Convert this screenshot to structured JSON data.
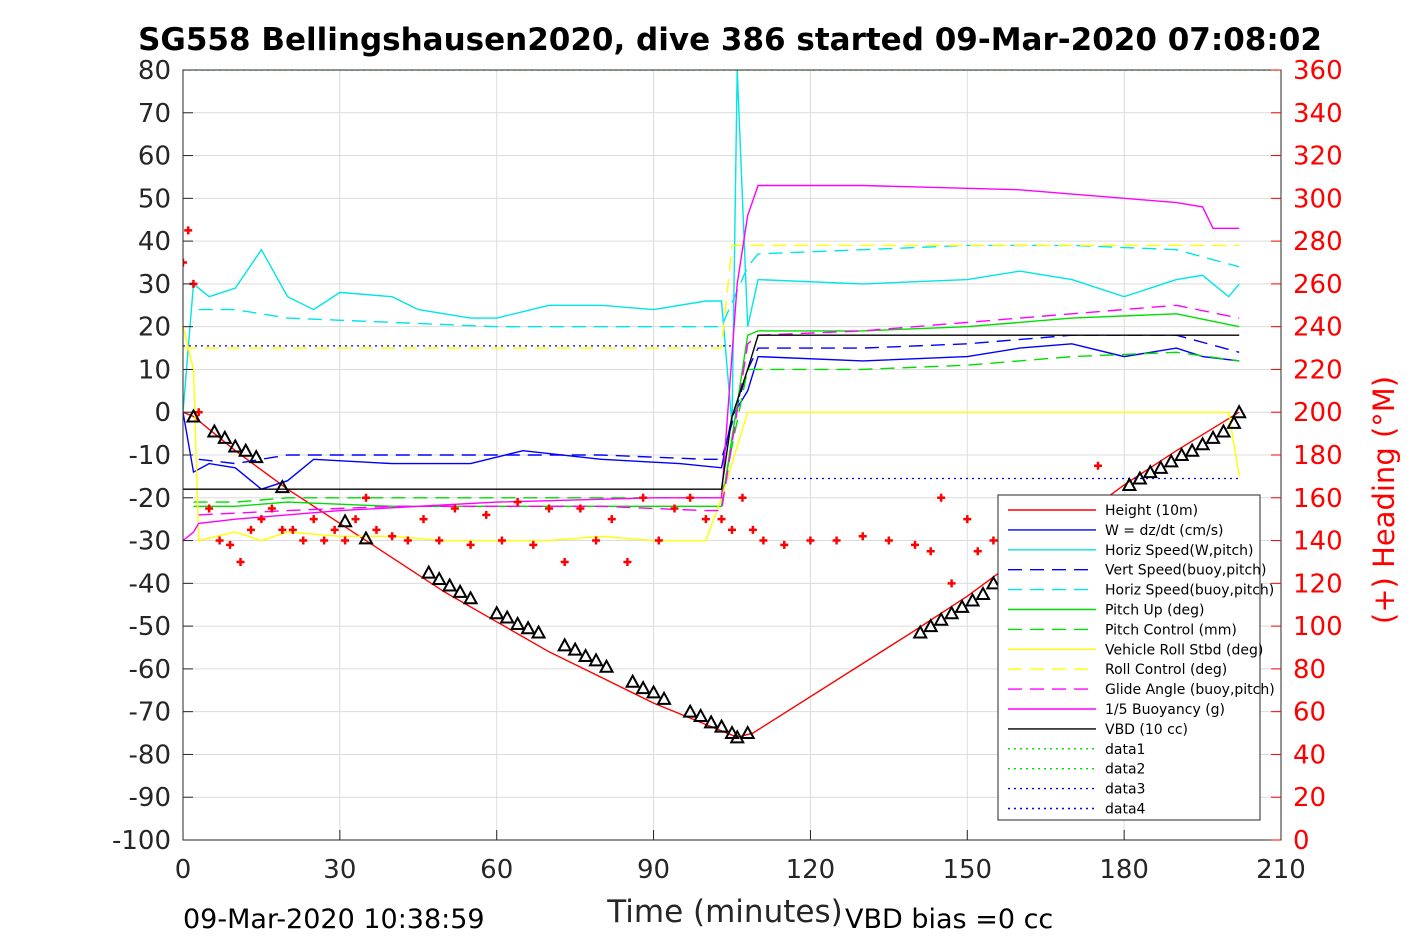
{
  "chart_data": {
    "type": "line",
    "title": "SG558 Bellingshausen2020, dive 386 started 09-Mar-2020 07:08:02",
    "xlabel": "Time (minutes)",
    "ylabel_right": "(+) Heading (°M)",
    "xlim": [
      0,
      210
    ],
    "ylim": [
      -100,
      80
    ],
    "ylim_right": [
      0,
      360
    ],
    "x_ticks": [
      0,
      30,
      60,
      90,
      120,
      150,
      180,
      210
    ],
    "y_ticks": [
      -100,
      -90,
      -80,
      -70,
      -60,
      -50,
      -40,
      -30,
      -20,
      -10,
      0,
      10,
      20,
      30,
      40,
      50,
      60,
      70,
      80
    ],
    "y_right_ticks": [
      0,
      20,
      40,
      60,
      80,
      100,
      120,
      140,
      160,
      180,
      200,
      220,
      240,
      260,
      280,
      300,
      320,
      340,
      360
    ],
    "grid": true,
    "legend_position": "bottom-right",
    "footer_left": "09-Mar-2020 10:38:59",
    "footer_right": "VBD bias =0 cc",
    "colors": {
      "red": "#ff0000",
      "blue": "#0000ff",
      "cyan": "#00e5e5",
      "green": "#00dd00",
      "yellow": "#ffff00",
      "magenta": "#ff00ff",
      "black": "#000000"
    },
    "series": [
      {
        "name": "Height (10m)",
        "color": "#ff0000",
        "dash": "solid",
        "x": [
          0,
          2,
          10,
          20,
          30,
          40,
          50,
          60,
          70,
          80,
          90,
          100,
          106,
          109,
          140,
          150,
          160,
          170,
          180,
          190,
          202
        ],
        "y": [
          0,
          -1,
          -9,
          -18,
          -26,
          -34,
          -42,
          -49,
          -56,
          -62,
          -68,
          -73,
          -76,
          -75,
          -51,
          -43,
          -34,
          -26,
          -17,
          -9,
          0
        ]
      },
      {
        "name": "W = dz/dt (cm/s)",
        "color": "#0000ff",
        "dash": "solid",
        "x": [
          0,
          2,
          5,
          10,
          15,
          20,
          25,
          40,
          55,
          65,
          80,
          95,
          103,
          105,
          108,
          110,
          130,
          150,
          160,
          170,
          180,
          190,
          195,
          202
        ],
        "y": [
          0,
          -14,
          -12,
          -13,
          -18,
          -16,
          -11,
          -12,
          -12,
          -9,
          -11,
          -12,
          -13,
          -1,
          5,
          13,
          12,
          13,
          15,
          16,
          13,
          15,
          13,
          12
        ]
      },
      {
        "name": "Horiz Speed(W,pitch)",
        "color": "#00e5e5",
        "dash": "solid",
        "x": [
          0,
          2,
          5,
          10,
          15,
          20,
          25,
          30,
          40,
          45,
          55,
          60,
          70,
          80,
          90,
          100,
          103,
          105,
          106,
          108,
          110,
          130,
          150,
          160,
          170,
          180,
          190,
          195,
          200,
          202
        ],
        "y": [
          0,
          30,
          27,
          29,
          38,
          27,
          24,
          28,
          27,
          24,
          22,
          22,
          25,
          25,
          24,
          26,
          26,
          -3,
          80,
          20,
          31,
          30,
          31,
          33,
          31,
          27,
          31,
          32,
          27,
          30
        ]
      },
      {
        "name": "Vert Speed(buoy,pitch)",
        "color": "#0000ff",
        "dash": "dashed",
        "x": [
          3,
          10,
          20,
          40,
          60,
          80,
          100,
          103,
          108,
          110,
          130,
          150,
          170,
          190,
          202
        ],
        "y": [
          -11,
          -12,
          -10,
          -10,
          -10,
          -10,
          -11,
          -11,
          10,
          15,
          15,
          16,
          18,
          18,
          14
        ]
      },
      {
        "name": "Horiz Speed(buoy,pitch)",
        "color": "#00e5e5",
        "dash": "dashed",
        "x": [
          3,
          10,
          20,
          40,
          60,
          80,
          100,
          103,
          108,
          110,
          130,
          150,
          170,
          190,
          202
        ],
        "y": [
          24,
          24,
          22,
          21,
          20,
          20,
          20,
          20,
          34,
          37,
          38,
          39,
          39,
          38,
          34
        ]
      },
      {
        "name": "Pitch Up (deg)",
        "color": "#00dd00",
        "dash": "solid",
        "x": [
          2,
          10,
          20,
          40,
          60,
          80,
          100,
          103,
          108,
          110,
          130,
          150,
          170,
          190,
          202
        ],
        "y": [
          -22,
          -22,
          -21,
          -22,
          -22,
          -22,
          -22,
          -22,
          18,
          19,
          19,
          20,
          22,
          23,
          20
        ]
      },
      {
        "name": "Pitch Control (mm)",
        "color": "#00dd00",
        "dash": "dashed",
        "x": [
          2,
          10,
          20,
          40,
          60,
          80,
          100,
          103,
          108,
          110,
          130,
          150,
          170,
          190,
          202
        ],
        "y": [
          -21,
          -21,
          -20,
          -20,
          -20,
          -20,
          -20,
          -20,
          10,
          10,
          10,
          11,
          13,
          14,
          12
        ]
      },
      {
        "name": "Vehicle Roll Stbd (deg)",
        "color": "#ffff00",
        "dash": "solid",
        "x": [
          0,
          2,
          3,
          10,
          15,
          20,
          30,
          40,
          50,
          60,
          70,
          80,
          90,
          100,
          103,
          108,
          120,
          140,
          150,
          160,
          170,
          180,
          190,
          200,
          202
        ],
        "y": [
          20,
          10,
          -30,
          -28,
          -30,
          -28,
          -29,
          -29,
          -30,
          -30,
          -30,
          -29,
          -30,
          -30,
          -20,
          0,
          0,
          0,
          0,
          0,
          0,
          0,
          0,
          0,
          -15
        ]
      },
      {
        "name": "Roll Control (deg)",
        "color": "#ffff00",
        "dash": "dashed",
        "x": [
          0,
          103,
          105,
          202
        ],
        "y": [
          15,
          15,
          39,
          39
        ]
      },
      {
        "name": "Glide Angle (buoy,pitch)",
        "color": "#ff00ff",
        "dash": "dashed",
        "x": [
          3,
          20,
          40,
          60,
          80,
          100,
          103,
          108,
          110,
          130,
          150,
          170,
          190,
          202
        ],
        "y": [
          -24,
          -23,
          -22,
          -22,
          -22,
          -23,
          -23,
          16,
          18,
          19,
          21,
          23,
          25,
          22
        ]
      },
      {
        "name": "1/5 Buoyancy (g)",
        "color": "#ff00ff",
        "dash": "solid",
        "x": [
          0,
          2,
          3,
          10,
          30,
          60,
          90,
          103,
          106,
          108,
          110,
          130,
          160,
          180,
          190,
          195,
          197,
          202
        ],
        "y": [
          -30,
          -28,
          -26,
          -25,
          -23,
          -21,
          -20,
          -20,
          30,
          46,
          53,
          53,
          52,
          50,
          49,
          48,
          43,
          43
        ]
      },
      {
        "name": "VBD (10 cc)",
        "color": "#000000",
        "dash": "solid",
        "x": [
          0,
          2,
          103,
          105,
          108,
          110,
          202
        ],
        "y": [
          -18,
          -18,
          -18,
          -1,
          10,
          18,
          18
        ]
      },
      {
        "name": "data1",
        "color": "#00dd00",
        "dash": "dotted",
        "x": [
          0,
          210
        ],
        "y": [
          80,
          80
        ]
      },
      {
        "name": "data2",
        "color": "#00dd00",
        "dash": "dotted",
        "x": [
          0,
          210
        ],
        "y": [
          80,
          80
        ]
      },
      {
        "name": "data3",
        "color": "#0000ff",
        "dash": "dotted",
        "x": [
          0,
          105
        ],
        "y": [
          15.5,
          15.5
        ]
      },
      {
        "name": "data4",
        "color": "#0000ff",
        "dash": "dotted",
        "x": [
          105,
          202
        ],
        "y": [
          -15.5,
          -15.5
        ]
      }
    ],
    "heading_series": {
      "color": "#ff0000",
      "marker": "+",
      "axis": "right",
      "x": [
        0,
        1,
        2,
        3,
        5,
        7,
        9,
        11,
        13,
        15,
        17,
        19,
        21,
        23,
        25,
        27,
        29,
        31,
        33,
        35,
        37,
        40,
        43,
        46,
        49,
        52,
        55,
        58,
        61,
        64,
        67,
        70,
        73,
        76,
        79,
        82,
        85,
        88,
        91,
        94,
        97,
        100,
        103,
        105,
        107,
        109,
        111,
        115,
        120,
        125,
        130,
        135,
        140,
        143,
        145,
        147,
        150,
        152,
        155,
        158,
        161,
        164,
        167,
        170,
        173,
        175,
        178,
        181,
        184,
        187,
        190,
        193,
        196,
        199,
        202
      ],
      "y": [
        270,
        285,
        260,
        200,
        155,
        140,
        138,
        130,
        145,
        150,
        155,
        145,
        145,
        140,
        150,
        140,
        145,
        140,
        150,
        160,
        145,
        142,
        140,
        150,
        140,
        155,
        138,
        152,
        140,
        158,
        138,
        155,
        130,
        155,
        140,
        150,
        130,
        160,
        140,
        155,
        160,
        150,
        150,
        145,
        160,
        145,
        140,
        138,
        140,
        140,
        142,
        140,
        138,
        135,
        160,
        120,
        150,
        135,
        140,
        140,
        140,
        140,
        150,
        140,
        150,
        175,
        140,
        130,
        140,
        120,
        135,
        120,
        130,
        140,
        150
      ]
    },
    "position_series": {
      "name": "Height (10m) markers",
      "color": "#000000",
      "marker": "triangle",
      "x": [
        2,
        6,
        8,
        10,
        12,
        14,
        19,
        31,
        35,
        47,
        49,
        51,
        53,
        55,
        60,
        62,
        64,
        66,
        68,
        73,
        75,
        77,
        79,
        81,
        86,
        88,
        90,
        92,
        97,
        99,
        101,
        103,
        105,
        106,
        108,
        141,
        143,
        145,
        147,
        149,
        151,
        153,
        155,
        181,
        183,
        185,
        187,
        189,
        191,
        193,
        195,
        197,
        199,
        201,
        202
      ],
      "y": [
        -1,
        -4.5,
        -6,
        -8,
        -9,
        -10.5,
        -17.5,
        -25.5,
        -29.5,
        -37.5,
        -39,
        -40.5,
        -42,
        -43.5,
        -47,
        -48,
        -49.5,
        -50.5,
        -51.5,
        -54.5,
        -55.5,
        -57,
        -58,
        -59.5,
        -63,
        -64.5,
        -65.5,
        -67,
        -70,
        -71,
        -72.5,
        -73.5,
        -75,
        -76,
        -75,
        -51.5,
        -50,
        -48.5,
        -47,
        -45.5,
        -44,
        -42.5,
        -40,
        -17,
        -15.5,
        -14,
        -13,
        -11.5,
        -10,
        -9,
        -7.5,
        -6,
        -4.5,
        -2.5,
        0
      ]
    }
  }
}
